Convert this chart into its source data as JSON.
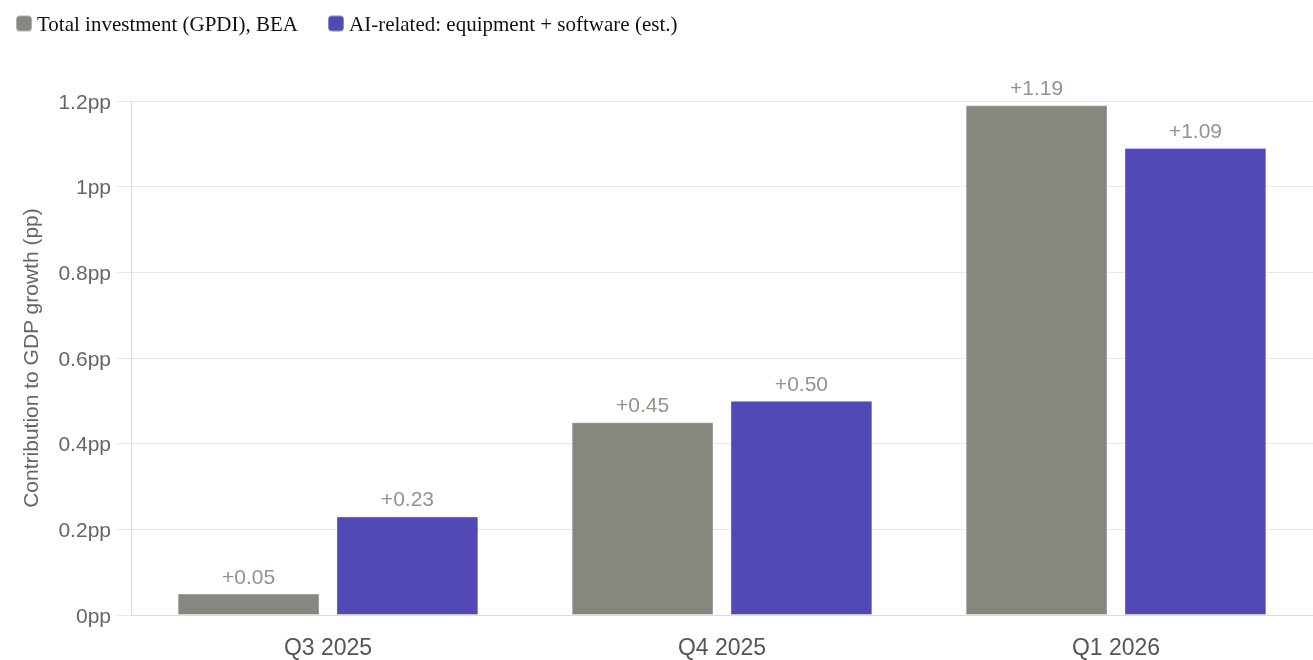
{
  "chart_data": {
    "type": "bar",
    "categories": [
      "Q3 2025",
      "Q4 2025",
      "Q1 2026"
    ],
    "series": [
      {
        "name": "Total investment (GPDI), BEA",
        "color": "#878780",
        "values": [
          0.05,
          0.45,
          1.19
        ],
        "value_labels": [
          "+0.05",
          "+0.45",
          "+1.19"
        ]
      },
      {
        "name": "AI-related: equipment + software (est.)",
        "color": "#5349b5",
        "values": [
          0.23,
          0.5,
          1.09
        ],
        "value_labels": [
          "+0.23",
          "+0.50",
          "+1.09"
        ]
      }
    ],
    "ylabel": "Contribution to GDP growth (pp)",
    "ylim": [
      0,
      1.2
    ],
    "yticks": [
      {
        "value": 0,
        "label": "0pp"
      },
      {
        "value": 0.2,
        "label": "0.2pp"
      },
      {
        "value": 0.4,
        "label": "0.4pp"
      },
      {
        "value": 0.6,
        "label": "0.6pp"
      },
      {
        "value": 0.8,
        "label": "0.8pp"
      },
      {
        "value": 1,
        "label": "1pp"
      },
      {
        "value": 1.2,
        "label": "1.2pp"
      }
    ],
    "grid": "y",
    "legend": "top left"
  }
}
